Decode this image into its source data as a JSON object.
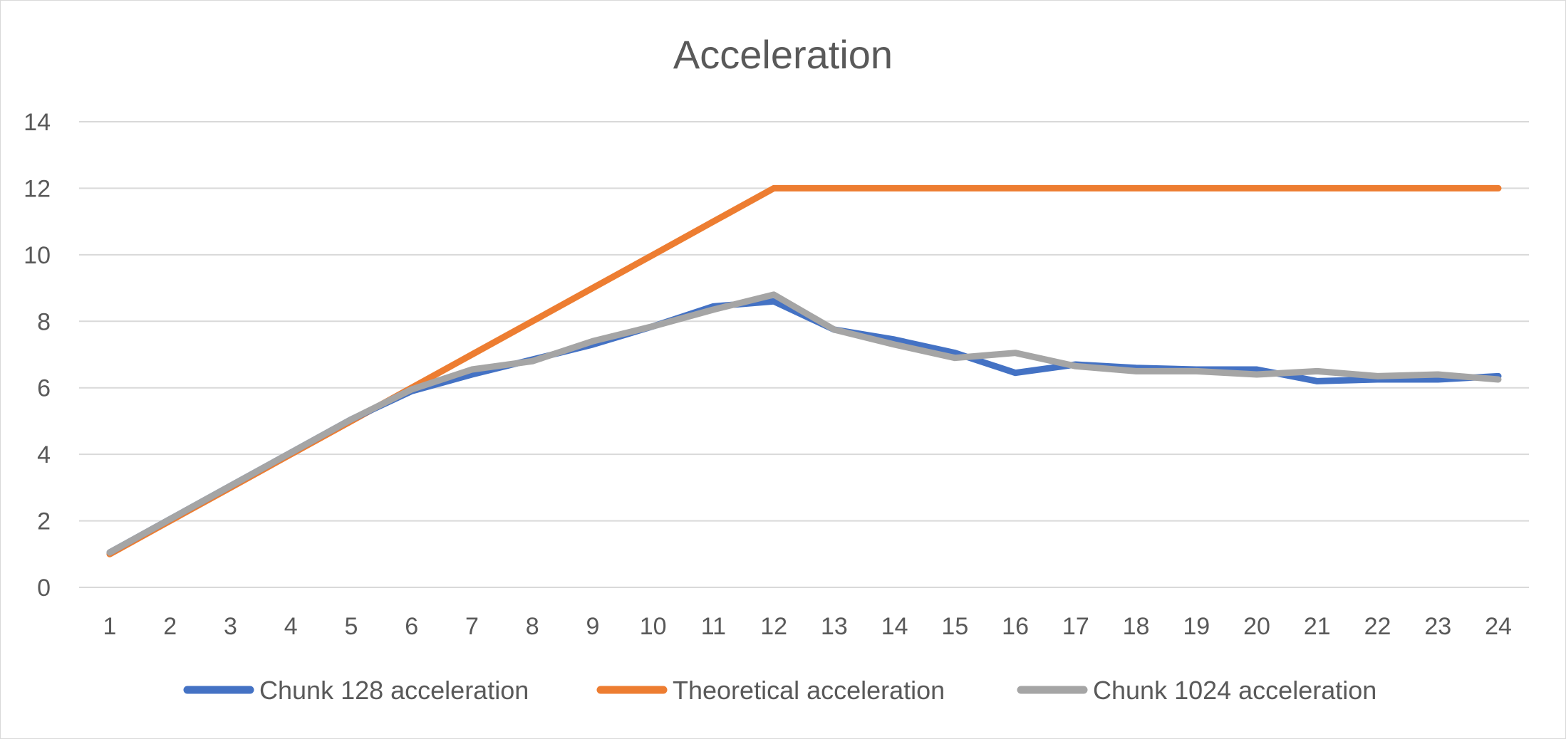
{
  "chart_data": {
    "type": "line",
    "title": "Acceleration",
    "xlabel": "",
    "ylabel": "",
    "categories": [
      "1",
      "2",
      "3",
      "4",
      "5",
      "6",
      "7",
      "8",
      "9",
      "10",
      "11",
      "12",
      "13",
      "14",
      "15",
      "16",
      "17",
      "18",
      "19",
      "20",
      "21",
      "22",
      "23",
      "24"
    ],
    "ylim": [
      0,
      14
    ],
    "yticks": [
      0,
      2,
      4,
      6,
      8,
      10,
      12,
      14
    ],
    "grid": true,
    "legend_position": "bottom",
    "series": [
      {
        "name": "Chunk 128 acceleration",
        "color": "#4472C4",
        "values": [
          1.05,
          2.05,
          3.05,
          4.05,
          5.05,
          5.9,
          6.4,
          6.85,
          7.3,
          7.85,
          8.45,
          8.6,
          7.75,
          7.45,
          7.05,
          6.45,
          6.7,
          6.6,
          6.55,
          6.55,
          6.2,
          6.25,
          6.25,
          6.35
        ]
      },
      {
        "name": "Theoretical acceleration",
        "color": "#ED7D31",
        "values": [
          1,
          2,
          3,
          4,
          5,
          6,
          7,
          8,
          9,
          10,
          11,
          12,
          12,
          12,
          12,
          12,
          12,
          12,
          12,
          12,
          12,
          12,
          12,
          12
        ]
      },
      {
        "name": "Chunk 1024 acceleration",
        "color": "#A5A5A5",
        "values": [
          1.05,
          2.05,
          3.05,
          4.05,
          5.05,
          5.95,
          6.55,
          6.8,
          7.4,
          7.85,
          8.35,
          8.8,
          7.75,
          7.3,
          6.9,
          7.05,
          6.65,
          6.5,
          6.5,
          6.4,
          6.5,
          6.35,
          6.4,
          6.25
        ]
      }
    ]
  }
}
